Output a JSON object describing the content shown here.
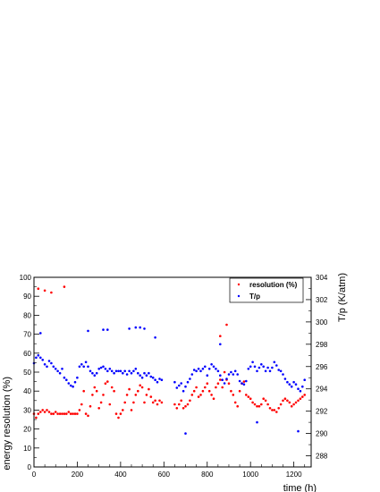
{
  "chart_data": {
    "type": "scatter",
    "xlabel": "time (h)",
    "ylabel_left": "energy resolution (%)",
    "ylabel_right": "T/p (K/atm)",
    "xlim": [
      0,
      1280
    ],
    "ylim_left": [
      0,
      100
    ],
    "ylim_right": [
      287,
      304
    ],
    "x_ticks": [
      0,
      200,
      400,
      600,
      800,
      1000,
      1200
    ],
    "y_left_ticks": [
      0,
      10,
      20,
      30,
      40,
      50,
      60,
      70,
      80,
      90,
      100
    ],
    "y_right_ticks": [
      288,
      290,
      292,
      294,
      296,
      298,
      300,
      302,
      304
    ],
    "legend_position": "top-right",
    "grid": false,
    "series": [
      {
        "name": "resolution (%)",
        "color": "#ff0000",
        "axis": "left",
        "x": [
          0,
          10,
          20,
          30,
          40,
          50,
          60,
          70,
          80,
          90,
          100,
          110,
          120,
          130,
          140,
          150,
          160,
          170,
          180,
          190,
          200,
          210,
          220,
          230,
          240,
          250,
          260,
          270,
          280,
          290,
          300,
          310,
          320,
          330,
          340,
          350,
          360,
          370,
          380,
          390,
          400,
          410,
          420,
          430,
          440,
          450,
          460,
          470,
          480,
          490,
          500,
          510,
          520,
          530,
          540,
          550,
          560,
          570,
          580,
          590,
          650,
          660,
          670,
          680,
          690,
          700,
          710,
          720,
          730,
          740,
          750,
          760,
          770,
          780,
          790,
          800,
          810,
          820,
          830,
          840,
          850,
          860,
          870,
          880,
          890,
          900,
          910,
          920,
          930,
          940,
          950,
          960,
          970,
          980,
          990,
          1000,
          1010,
          1020,
          1030,
          1040,
          1050,
          1060,
          1070,
          1080,
          1090,
          1100,
          1110,
          1120,
          1130,
          1140,
          1150,
          1160,
          1170,
          1180,
          1190,
          1200,
          1210,
          1220,
          1230,
          1240,
          1250,
          20,
          50,
          80,
          140,
          860,
          890
        ],
        "y": [
          28,
          26,
          28,
          29,
          30,
          29,
          30,
          29,
          28,
          28,
          29,
          28,
          28,
          28,
          28,
          28,
          29,
          28,
          28,
          28,
          28,
          30,
          33,
          40,
          28,
          27,
          32,
          38,
          42,
          40,
          31,
          34,
          38,
          44,
          45,
          33,
          42,
          40,
          28,
          26,
          28,
          30,
          34,
          38,
          41,
          30,
          34,
          38,
          40,
          43,
          42,
          34,
          38,
          41,
          37,
          34,
          35,
          33,
          35,
          34,
          33,
          31,
          33,
          35,
          31,
          32,
          33,
          35,
          38,
          40,
          42,
          37,
          38,
          40,
          42,
          44,
          40,
          38,
          36,
          42,
          44,
          46,
          42,
          50,
          46,
          44,
          40,
          38,
          34,
          32,
          40,
          44,
          45,
          38,
          37,
          36,
          34,
          33,
          32,
          32,
          33,
          36,
          35,
          33,
          31,
          30,
          30,
          29,
          31,
          33,
          35,
          36,
          35,
          34,
          32,
          33,
          34,
          35,
          36,
          37,
          38,
          94,
          93,
          92,
          95,
          69,
          75
        ]
      },
      {
        "name": "T/p",
        "color": "#0000ff",
        "axis": "right",
        "x": [
          0,
          10,
          20,
          30,
          40,
          50,
          60,
          70,
          80,
          90,
          100,
          110,
          120,
          130,
          140,
          150,
          160,
          170,
          180,
          190,
          200,
          210,
          220,
          230,
          240,
          250,
          260,
          270,
          280,
          290,
          300,
          310,
          320,
          330,
          340,
          350,
          360,
          370,
          380,
          390,
          400,
          410,
          420,
          430,
          440,
          450,
          460,
          470,
          480,
          490,
          500,
          510,
          520,
          530,
          540,
          550,
          560,
          570,
          580,
          590,
          650,
          660,
          670,
          680,
          690,
          700,
          710,
          720,
          730,
          740,
          750,
          760,
          770,
          780,
          790,
          800,
          810,
          820,
          830,
          840,
          850,
          860,
          870,
          880,
          890,
          900,
          910,
          920,
          930,
          940,
          950,
          960,
          970,
          980,
          990,
          1000,
          1010,
          1020,
          1030,
          1040,
          1050,
          1060,
          1070,
          1080,
          1090,
          1100,
          1110,
          1120,
          1130,
          1140,
          1150,
          1160,
          1170,
          1180,
          1190,
          1200,
          1210,
          1220,
          1230,
          1240,
          1250,
          30,
          250,
          320,
          340,
          440,
          470,
          490,
          510,
          560,
          700,
          860,
          1030,
          1220
        ],
        "y": [
          296.3,
          296.8,
          297.0,
          296.8,
          296.6,
          296.2,
          296.0,
          296.5,
          296.3,
          296.0,
          295.8,
          295.6,
          295.4,
          295.8,
          295.0,
          294.8,
          294.5,
          294.3,
          294.2,
          294.6,
          295.0,
          296.0,
          296.2,
          296.0,
          296.4,
          296.0,
          295.6,
          295.4,
          295.2,
          295.4,
          295.8,
          295.9,
          296.0,
          295.8,
          295.6,
          295.8,
          295.6,
          295.4,
          295.6,
          295.6,
          295.6,
          295.4,
          295.6,
          295.3,
          295.6,
          295.4,
          295.6,
          295.8,
          295.4,
          295.2,
          295.0,
          295.4,
          295.2,
          295.4,
          295.1,
          295.0,
          294.8,
          294.6,
          294.9,
          294.8,
          294.6,
          294.1,
          294.3,
          294.5,
          293.8,
          294.2,
          294.6,
          294.9,
          295.3,
          295.7,
          295.6,
          295.8,
          295.6,
          295.8,
          296.0,
          295.2,
          295.8,
          296.2,
          296.0,
          295.8,
          295.6,
          295.2,
          294.8,
          294.5,
          294.9,
          295.3,
          295.5,
          295.3,
          295.6,
          295.3,
          294.7,
          294.5,
          294.4,
          294.7,
          295.8,
          296.0,
          296.4,
          296.0,
          295.6,
          295.9,
          296.2,
          296.0,
          295.6,
          295.9,
          295.6,
          295.9,
          296.4,
          296.1,
          295.7,
          295.6,
          295.3,
          294.9,
          294.6,
          294.4,
          294.2,
          294.6,
          294.4,
          294.0,
          293.8,
          294.2,
          294.8,
          299.0,
          299.2,
          299.3,
          299.3,
          299.4,
          299.5,
          299.5,
          299.4,
          298.6,
          290.0,
          298.0,
          291.0,
          290.2
        ]
      }
    ]
  }
}
